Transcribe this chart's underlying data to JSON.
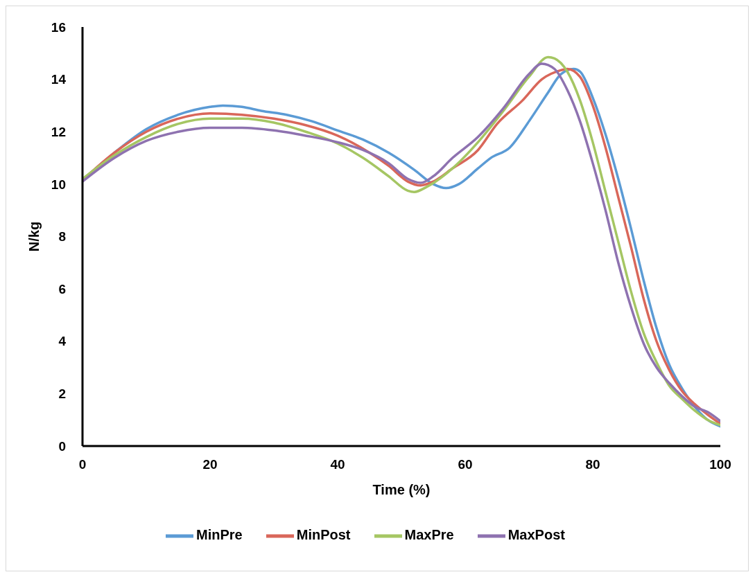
{
  "chart_data": {
    "type": "line",
    "xlabel": "Time (%)",
    "ylabel": "N/kg",
    "xlim": [
      0,
      100
    ],
    "xticks": [
      0,
      20,
      40,
      60,
      80,
      100
    ],
    "ylim": [
      0,
      16
    ],
    "yticks": [
      0,
      2,
      4,
      6,
      8,
      10,
      12,
      14,
      16
    ],
    "grid": false,
    "legend": "bottom",
    "marker": "none",
    "line_style": "solid",
    "series": [
      {
        "name": "MinPre",
        "color": "#5b9bd5",
        "x": [
          0,
          5,
          10,
          15,
          20,
          22,
          25,
          28,
          32,
          36,
          40,
          44,
          48,
          52,
          55,
          57,
          59,
          62,
          64,
          67,
          70,
          73,
          75,
          77,
          78,
          80,
          82,
          84,
          86,
          88,
          90,
          92,
          94,
          96,
          98,
          100
        ],
        "values": [
          10.15,
          11.2,
          12.1,
          12.65,
          12.95,
          13.0,
          12.95,
          12.8,
          12.65,
          12.4,
          12.05,
          11.7,
          11.2,
          10.55,
          10.0,
          9.85,
          10.0,
          10.6,
          11.0,
          11.4,
          12.4,
          13.5,
          14.2,
          14.4,
          14.3,
          13.3,
          11.9,
          10.2,
          8.3,
          6.3,
          4.5,
          3.1,
          2.2,
          1.5,
          1.0,
          0.75
        ]
      },
      {
        "name": "MinPost",
        "color": "#d9675a",
        "x": [
          0,
          5,
          10,
          15,
          20,
          25,
          30,
          35,
          40,
          45,
          48,
          51,
          53,
          55,
          58,
          62,
          65,
          69,
          72,
          75,
          76,
          78,
          80,
          82,
          84,
          86,
          88,
          90,
          92,
          94,
          96,
          98,
          100
        ],
        "values": [
          10.15,
          11.2,
          12.0,
          12.5,
          12.7,
          12.65,
          12.5,
          12.25,
          11.85,
          11.2,
          10.7,
          10.1,
          9.95,
          10.1,
          10.6,
          11.3,
          12.3,
          13.2,
          14.0,
          14.35,
          14.4,
          14.1,
          13.0,
          11.4,
          9.5,
          7.6,
          5.6,
          4.0,
          2.9,
          2.1,
          1.6,
          1.2,
          0.85
        ]
      },
      {
        "name": "MaxPre",
        "color": "#a5c663",
        "x": [
          0,
          5,
          10,
          15,
          20,
          25,
          30,
          35,
          40,
          44,
          48,
          51,
          52,
          54,
          58,
          62,
          66,
          70,
          73,
          74,
          76,
          78,
          80,
          82,
          84,
          86,
          88,
          90,
          92,
          94,
          96,
          98,
          100
        ],
        "values": [
          10.2,
          11.1,
          11.8,
          12.3,
          12.5,
          12.5,
          12.35,
          12.0,
          11.55,
          11.0,
          10.3,
          9.75,
          9.7,
          9.9,
          10.6,
          11.6,
          12.8,
          14.1,
          14.85,
          14.8,
          14.3,
          13.2,
          11.6,
          9.7,
          7.8,
          5.9,
          4.3,
          3.2,
          2.3,
          1.8,
          1.35,
          1.0,
          0.8
        ]
      },
      {
        "name": "MaxPost",
        "color": "#8e72b0",
        "x": [
          0,
          5,
          10,
          15,
          20,
          25,
          30,
          35,
          40,
          44,
          48,
          51,
          53,
          55,
          58,
          62,
          66,
          70,
          72,
          74,
          76,
          78,
          80,
          82,
          84,
          86,
          88,
          90,
          92,
          94,
          96,
          98,
          100
        ],
        "values": [
          10.1,
          11.0,
          11.65,
          12.0,
          12.15,
          12.15,
          12.05,
          11.85,
          11.6,
          11.3,
          10.8,
          10.2,
          10.05,
          10.3,
          11.0,
          11.8,
          12.9,
          14.2,
          14.6,
          14.4,
          13.6,
          12.4,
          10.8,
          9.0,
          7.0,
          5.3,
          3.9,
          3.0,
          2.4,
          1.9,
          1.5,
          1.3,
          0.95
        ]
      }
    ]
  }
}
